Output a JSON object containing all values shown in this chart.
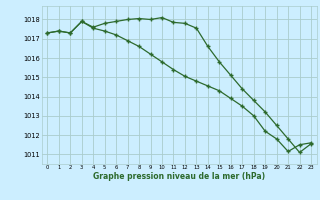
{
  "title": "Graphe pression niveau de la mer (hPa)",
  "background_color": "#cceeff",
  "grid_color": "#aacccc",
  "line_color": "#2d6a2d",
  "marker": "+",
  "xlim": [
    -0.5,
    23.5
  ],
  "ylim": [
    1010.5,
    1018.7
  ],
  "yticks": [
    1011,
    1012,
    1013,
    1014,
    1015,
    1016,
    1017,
    1018
  ],
  "xticks": [
    0,
    1,
    2,
    3,
    4,
    5,
    6,
    7,
    8,
    9,
    10,
    11,
    12,
    13,
    14,
    15,
    16,
    17,
    18,
    19,
    20,
    21,
    22,
    23
  ],
  "series1_x": [
    0,
    1,
    2,
    3,
    4,
    5,
    6,
    7,
    8,
    9,
    10,
    11,
    12,
    13,
    14,
    15,
    16,
    17,
    18,
    19,
    20,
    21,
    22,
    23
  ],
  "series1_y": [
    1017.3,
    1017.4,
    1017.3,
    1017.9,
    1017.6,
    1017.8,
    1017.9,
    1018.0,
    1018.05,
    1018.0,
    1018.1,
    1017.85,
    1017.8,
    1017.55,
    1016.6,
    1015.8,
    1015.1,
    1014.4,
    1013.8,
    1013.2,
    1012.5,
    1011.8,
    1011.1,
    1011.55
  ],
  "series2_x": [
    0,
    1,
    2,
    3,
    4,
    5,
    6,
    7,
    8,
    9,
    10,
    11,
    12,
    13,
    14,
    15,
    16,
    17,
    18,
    19,
    20,
    21,
    22,
    23
  ],
  "series2_y": [
    1017.3,
    1017.4,
    1017.3,
    1017.9,
    1017.55,
    1017.4,
    1017.2,
    1016.9,
    1016.6,
    1016.2,
    1015.8,
    1015.4,
    1015.05,
    1014.8,
    1014.55,
    1014.3,
    1013.9,
    1013.5,
    1013.0,
    1012.2,
    1011.8,
    1011.15,
    1011.5,
    1011.6
  ]
}
